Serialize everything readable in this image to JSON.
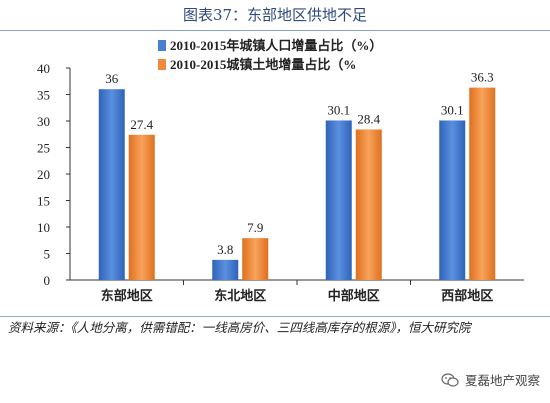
{
  "header": {
    "title": "图表37：东部地区供地不足"
  },
  "chart_data": {
    "type": "bar",
    "categories": [
      "东部地区",
      "东北地区",
      "中部地区",
      "西部地区"
    ],
    "series": [
      {
        "name": "2010-2015年城镇人口增量占比（%）",
        "values": [
          36,
          3.8,
          30.1,
          30.1
        ],
        "color": "#4a7fcf"
      },
      {
        "name": "2010-2015城镇土地增量占比（%",
        "values": [
          27.4,
          7.9,
          28.4,
          36.3
        ],
        "color": "#f08a3a"
      }
    ],
    "data_labels": [
      [
        "36",
        "3.8",
        "30.1",
        "30.1"
      ],
      [
        "27.4",
        "7.9",
        "28.4",
        "36.3"
      ]
    ],
    "ylim": [
      0,
      40
    ],
    "yticks": [
      "0",
      "5",
      "10",
      "15",
      "20",
      "25",
      "30",
      "35",
      "40"
    ],
    "legend_position": "top-center",
    "grid": false
  },
  "source_note": "资料来源：《人地分离，供需错配：一线高房价、三四线高库存的根源》，恒大研究院",
  "watermark": {
    "text": "夏磊地产观察",
    "icon": "wechat-icon"
  }
}
